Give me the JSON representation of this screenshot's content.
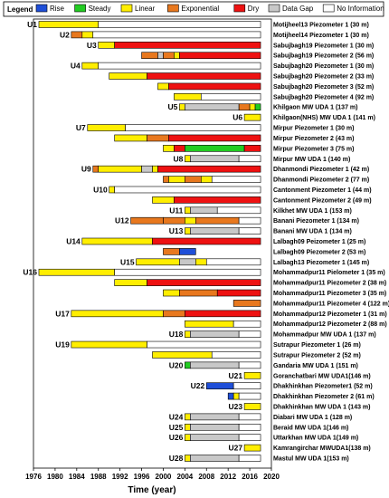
{
  "chart_data": {
    "type": "timeline",
    "legend": {
      "title": "Legend",
      "position": "top",
      "items": [
        {
          "name": "Rise",
          "color": "#1f4fd8"
        },
        {
          "name": "Steady",
          "color": "#22cc22"
        },
        {
          "name": "Linear",
          "color": "#ffee00"
        },
        {
          "name": "Exponential",
          "color": "#e8781e"
        },
        {
          "name": "Dry",
          "color": "#ee1111"
        },
        {
          "name": "Data Gap",
          "color": "#c8c8c8"
        },
        {
          "name": "No Information",
          "color": "#ffffff"
        }
      ]
    },
    "xlabel": "Time (year)",
    "xlim": [
      1976,
      2020
    ],
    "xticks": [
      1976,
      1980,
      1984,
      1988,
      1992,
      1996,
      2000,
      2004,
      2008,
      2012,
      2016,
      2020
    ],
    "rows": [
      {
        "name": "Motijheel13 Piezometer 1 (30 m)",
        "group": "U1",
        "segments": [
          [
            1977,
            1988,
            "Linear"
          ],
          [
            1988,
            2018,
            "No Information"
          ]
        ]
      },
      {
        "name": "Motijheel14 Piezometer 1 (30 m)",
        "group": "U2",
        "segments": [
          [
            1983,
            1985,
            "Exponential"
          ],
          [
            1985,
            1987,
            "Linear"
          ],
          [
            1987,
            2018,
            "No Information"
          ]
        ]
      },
      {
        "name": "Sabujbagh19 Piezometer 1 (30 m)",
        "group": "U3",
        "segments": [
          [
            1988,
            1991,
            "Linear"
          ],
          [
            1991,
            2018,
            "Dry"
          ]
        ]
      },
      {
        "name": "Sabujbagh19 Piezometer 2 (56 m)",
        "group": "U3",
        "segments": [
          [
            1996,
            1999,
            "Exponential"
          ],
          [
            1999,
            2000,
            "Data Gap"
          ],
          [
            2000,
            2002,
            "Exponential"
          ],
          [
            2002,
            2003,
            "Linear"
          ],
          [
            2003,
            2018,
            "Dry"
          ]
        ]
      },
      {
        "name": "Sabujbagh20 Piezometer 1 (30 m)",
        "group": "U4",
        "segments": [
          [
            1985,
            1988,
            "Linear"
          ],
          [
            1988,
            2018,
            "No Information"
          ]
        ]
      },
      {
        "name": "Sabujbagh20 Piezometer 2 (33 m)",
        "group": "U4",
        "segments": [
          [
            1990,
            1997,
            "Linear"
          ],
          [
            1997,
            2018,
            "Dry"
          ]
        ]
      },
      {
        "name": "Sabujbagh20 Piezometer 3 (52 m)",
        "group": "U4",
        "segments": [
          [
            1999,
            2001,
            "Linear"
          ],
          [
            2001,
            2018,
            "Dry"
          ]
        ]
      },
      {
        "name": "Sabujbagh20 Piezometer 4 (92 m)",
        "group": "U4",
        "segments": [
          [
            2002,
            2007,
            "Linear"
          ],
          [
            2007,
            2018,
            "No Information"
          ]
        ]
      },
      {
        "name": "Khilgaon MW UDA 1 (137 m)",
        "group": "U5",
        "segments": [
          [
            2003,
            2004,
            "Linear"
          ],
          [
            2004,
            2014,
            "Data Gap"
          ],
          [
            2014,
            2016,
            "Exponential"
          ],
          [
            2016,
            2017,
            "Linear"
          ],
          [
            2017,
            2018,
            "Steady"
          ]
        ]
      },
      {
        "name": "Khilgaon(NHS) MW UDA 1 (141 m)",
        "group": "U6",
        "segments": [
          [
            2015,
            2018,
            "Linear"
          ]
        ]
      },
      {
        "name": "Mirpur Piezometer 1 (30 m)",
        "group": "U7",
        "segments": [
          [
            1986,
            1993,
            "Linear"
          ],
          [
            1993,
            2018,
            "No Information"
          ]
        ]
      },
      {
        "name": "Mirpur Piezometer 2 (43 m)",
        "group": "U7",
        "segments": [
          [
            1991,
            1997,
            "Linear"
          ],
          [
            1997,
            2001,
            "Exponential"
          ],
          [
            2001,
            2018,
            "Dry"
          ]
        ]
      },
      {
        "name": "Mirpur Piezometer 3 (75 m)",
        "group": "U7",
        "segments": [
          [
            2000,
            2002,
            "Linear"
          ],
          [
            2002,
            2004,
            "Dry"
          ],
          [
            2004,
            2015,
            "Steady"
          ],
          [
            2015,
            2018,
            "Dry"
          ]
        ]
      },
      {
        "name": "Mirpur MW UDA 1 (140 m)",
        "group": "U8",
        "segments": [
          [
            2004,
            2005,
            "Linear"
          ],
          [
            2005,
            2014,
            "Data Gap"
          ],
          [
            2014,
            2018,
            "No Information"
          ]
        ]
      },
      {
        "name": "Dhanmondi Piezometer 1 (42 m)",
        "group": "U9",
        "segments": [
          [
            1987,
            1988,
            "Exponential"
          ],
          [
            1988,
            1996,
            "Linear"
          ],
          [
            1996,
            1998,
            "Data Gap"
          ],
          [
            1998,
            1999,
            "Linear"
          ],
          [
            1999,
            2018,
            "Dry"
          ]
        ]
      },
      {
        "name": "Dhanmondi Piezometer 2 (77 m)",
        "group": "U9",
        "segments": [
          [
            2000,
            2001,
            "Exponential"
          ],
          [
            2001,
            2004,
            "Linear"
          ],
          [
            2004,
            2007,
            "Exponential"
          ],
          [
            2007,
            2009,
            "Linear"
          ],
          [
            2009,
            2018,
            "No Information"
          ]
        ]
      },
      {
        "name": "Cantonment Piezometer 1 (44 m)",
        "group": "U10",
        "segments": [
          [
            1990,
            1991,
            "Linear"
          ],
          [
            1991,
            2018,
            "No Information"
          ]
        ]
      },
      {
        "name": "Cantonment Piezometer 2 (49 m)",
        "group": "U10",
        "segments": [
          [
            1998,
            2002,
            "Linear"
          ],
          [
            2002,
            2018,
            "Dry"
          ]
        ]
      },
      {
        "name": "Kilkhet MW UDA 1 (153 m)",
        "group": "U11",
        "segments": [
          [
            2004,
            2005,
            "Linear"
          ],
          [
            2005,
            2010,
            "Data Gap"
          ],
          [
            2010,
            2018,
            "No Information"
          ]
        ]
      },
      {
        "name": "Banani Piezometer 1 (134 m)",
        "group": "U12",
        "segments": [
          [
            1994,
            2000,
            "Exponential"
          ],
          [
            2000,
            2004,
            "Exponential"
          ],
          [
            2004,
            2006,
            "Linear"
          ],
          [
            2006,
            2014,
            "Exponential"
          ],
          [
            2014,
            2018,
            "No Information"
          ]
        ]
      },
      {
        "name": "Banani MW UDA 1 (134 m)",
        "group": "U13",
        "segments": [
          [
            2004,
            2005,
            "Linear"
          ],
          [
            2005,
            2014,
            "Data Gap"
          ],
          [
            2014,
            2018,
            "No Information"
          ]
        ]
      },
      {
        "name": "Lalbagh09 Peizometer 1 (25 m)",
        "group": "U14",
        "segments": [
          [
            1985,
            1998,
            "Linear"
          ],
          [
            1998,
            2018,
            "Dry"
          ]
        ]
      },
      {
        "name": "Lalbagh09 Piezometer 2 (53 m)",
        "group": "U14",
        "segments": [
          [
            2000,
            2003,
            "Exponential"
          ],
          [
            2003,
            2006,
            "Rise"
          ]
        ]
      },
      {
        "name": "Lalbagh13 Piezometer 1 (145 m)",
        "group": "U15",
        "segments": [
          [
            1995,
            2003,
            "Linear"
          ],
          [
            2003,
            2006,
            "Data Gap"
          ],
          [
            2006,
            2008,
            "Linear"
          ],
          [
            2008,
            2018,
            "No Information"
          ]
        ]
      },
      {
        "name": "Mohammadpur11 Pielometer 1 (35 m)",
        "group": "U16",
        "segments": [
          [
            1977,
            1991,
            "Linear"
          ],
          [
            1991,
            2018,
            "No Information"
          ]
        ]
      },
      {
        "name": "Mohammadpur11 Piezometer 2 (38 m)",
        "group": "U16",
        "segments": [
          [
            1991,
            1997,
            "Linear"
          ],
          [
            1997,
            2018,
            "Dry"
          ]
        ]
      },
      {
        "name": "Mohammadpur11 Piezometer 3 (35 m)",
        "group": "U16",
        "segments": [
          [
            2000,
            2003,
            "Linear"
          ],
          [
            2003,
            2010,
            "Exponential"
          ],
          [
            2010,
            2018,
            "Dry"
          ]
        ]
      },
      {
        "name": "Mohammadpur11 Piezometer 4 (122 m)",
        "group": "U16",
        "segments": [
          [
            2013,
            2018,
            "Exponential"
          ]
        ]
      },
      {
        "name": "Mohammadpur12 Piezometer 1 (31 m)",
        "group": "U17",
        "segments": [
          [
            1983,
            2000,
            "Linear"
          ],
          [
            2000,
            2004,
            "Exponential"
          ],
          [
            2004,
            2018,
            "Dry"
          ]
        ]
      },
      {
        "name": "Mohammadpur12 Piezometer 2 (88 m)",
        "group": "U17",
        "segments": [
          [
            2004,
            2013,
            "Linear"
          ],
          [
            2013,
            2018,
            "No Information"
          ]
        ]
      },
      {
        "name": "Mohammadpur MW UDA 1 (137 m)",
        "group": "U18",
        "segments": [
          [
            2004,
            2005,
            "Linear"
          ],
          [
            2005,
            2014,
            "Data Gap"
          ],
          [
            2014,
            2018,
            "No Information"
          ]
        ]
      },
      {
        "name": "Sutrapur Piezometer 1 (26 m)",
        "group": "U19",
        "segments": [
          [
            1983,
            1997,
            "Linear"
          ],
          [
            1997,
            2018,
            "No Information"
          ]
        ]
      },
      {
        "name": "Sutrapur Piezometer 2 (52 m)",
        "group": "U19",
        "segments": [
          [
            1998,
            2009,
            "Linear"
          ],
          [
            2009,
            2018,
            "No Information"
          ]
        ]
      },
      {
        "name": "Gandaria MW UDA 1 (151 m)",
        "group": "U20",
        "segments": [
          [
            2004,
            2005,
            "Steady"
          ],
          [
            2005,
            2014,
            "Data Gap"
          ],
          [
            2014,
            2018,
            "No Information"
          ]
        ]
      },
      {
        "name": "Goranchatbari MW UDA1(146 m)",
        "group": "U21",
        "segments": [
          [
            2015,
            2018,
            "Linear"
          ]
        ]
      },
      {
        "name": "Dhakhinkhan Piezometer1 (52 m)",
        "group": "U22",
        "segments": [
          [
            2008,
            2013,
            "Rise"
          ],
          [
            2013,
            2018,
            "No Information"
          ]
        ]
      },
      {
        "name": "Dhakhinkhan Piezometer 2 (61 m)",
        "group": "U22",
        "segments": [
          [
            2012,
            2013,
            "Rise"
          ],
          [
            2013,
            2014,
            "Linear"
          ],
          [
            2014,
            2018,
            "No Information"
          ]
        ]
      },
      {
        "name": "Dhakhinkhan MW UDA 1 (143 m)",
        "group": "U23",
        "segments": [
          [
            2015,
            2018,
            "Linear"
          ]
        ]
      },
      {
        "name": "Diabari MW UDA 1 (128 m)",
        "group": "U24",
        "segments": [
          [
            2004,
            2005,
            "Linear"
          ],
          [
            2005,
            2014,
            "Data Gap"
          ],
          [
            2014,
            2018,
            "No Information"
          ]
        ]
      },
      {
        "name": "Beraid MW UDA 1(146 m)",
        "group": "U25",
        "segments": [
          [
            2004,
            2005,
            "Linear"
          ],
          [
            2005,
            2014,
            "Data Gap"
          ],
          [
            2014,
            2018,
            "No Information"
          ]
        ]
      },
      {
        "name": "Uttarkhan MW UDA 1(149 m)",
        "group": "U26",
        "segments": [
          [
            2004,
            2005,
            "Linear"
          ],
          [
            2005,
            2014,
            "Data Gap"
          ],
          [
            2014,
            2018,
            "No Information"
          ]
        ]
      },
      {
        "name": "Kamrangirchar MWUDA1(138 m)",
        "group": "U27",
        "segments": [
          [
            2015,
            2018,
            "Linear"
          ]
        ]
      },
      {
        "name": "Mastul MW UDA 1(153 m)",
        "group": "U28",
        "segments": [
          [
            2004,
            2005,
            "Linear"
          ],
          [
            2005,
            2014,
            "Data Gap"
          ],
          [
            2014,
            2018,
            "No Information"
          ]
        ]
      }
    ]
  }
}
